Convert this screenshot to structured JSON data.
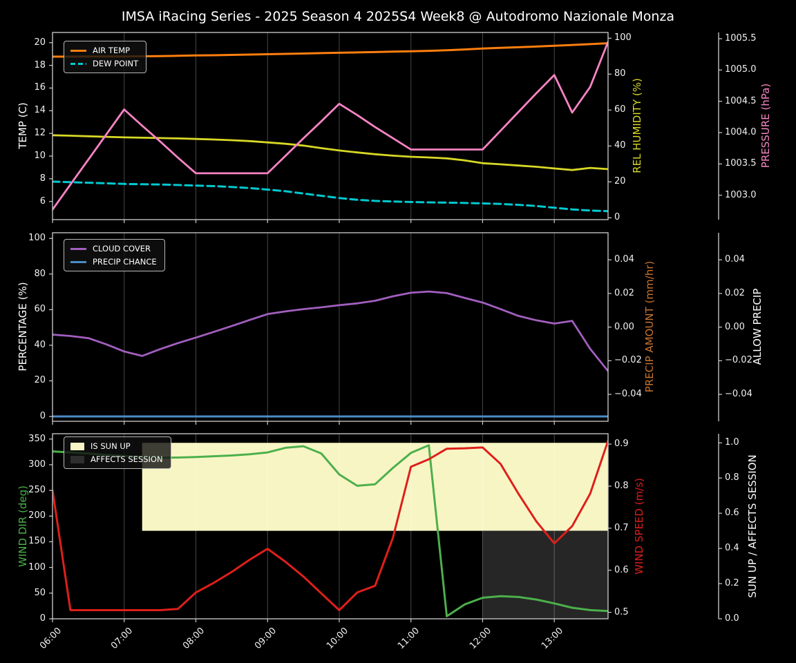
{
  "title": "IMSA iRacing Series - 2025 Season 4 2025S4 Week8 @ Autodromo Nazionale Monza",
  "colors": {
    "background": "#000000",
    "text": "#ffffff",
    "spine": "#d0d0d0",
    "grid": "rgba(255,255,255,0.28)"
  },
  "chart_data": [
    {
      "type": "line",
      "x_range": [
        6,
        13.75
      ],
      "x_hours": [
        6,
        6.25,
        6.5,
        6.75,
        7,
        7.25,
        7.5,
        7.75,
        8,
        8.25,
        8.5,
        8.75,
        9,
        9.25,
        9.5,
        9.75,
        10,
        10.25,
        10.5,
        10.75,
        11,
        11.25,
        11.5,
        11.75,
        12,
        12.25,
        12.5,
        12.75,
        13,
        13.25,
        13.5,
        13.75
      ],
      "x_ticks": {
        "hours": [
          6,
          7,
          8,
          9,
          10,
          11,
          12,
          13
        ],
        "labels": [
          "06:00",
          "07:00",
          "08:00",
          "09:00",
          "10:00",
          "11:00",
          "12:00",
          "13:00"
        ],
        "show_labels": false
      },
      "grid": true,
      "legend_loc": "upper left",
      "axes": {
        "left": {
          "label": "TEMP (C)",
          "color": "#ffffff",
          "range": [
            4.4,
            20.9
          ],
          "ticks": {
            "values": [
              6,
              8,
              10,
              12,
              14,
              16,
              18,
              20
            ],
            "labels": [
              "6",
              "8",
              "10",
              "12",
              "14",
              "16",
              "18",
              "20"
            ]
          }
        },
        "right1": {
          "label": "REL HUMIDITY (%)",
          "color": "#d8d826",
          "range": [
            -1,
            103.2
          ],
          "ticks": {
            "values": [
              0,
              20,
              40,
              60,
              80,
              100
            ],
            "labels": [
              "0",
              "20",
              "40",
              "60",
              "80",
              "100"
            ]
          }
        },
        "right2": {
          "label": "PRESSURE (hPa)",
          "color": "#f884c5",
          "range": [
            1002.61,
            1005.6
          ],
          "ticks": {
            "values": [
              1003.0,
              1003.5,
              1004.0,
              1004.5,
              1005.0,
              1005.5
            ],
            "labels": [
              "1003.0",
              "1003.5",
              "1004.0",
              "1004.5",
              "1005.0",
              "1005.5"
            ]
          }
        }
      },
      "series": [
        {
          "name": "AIR TEMP",
          "axis": "left",
          "color": "#ff7f0e",
          "width": 3,
          "values": [
            18.77,
            18.77,
            18.78,
            18.78,
            18.79,
            18.8,
            18.82,
            18.84,
            18.87,
            18.89,
            18.92,
            18.95,
            18.98,
            19.01,
            19.04,
            19.08,
            19.11,
            19.14,
            19.17,
            19.21,
            19.24,
            19.28,
            19.33,
            19.4,
            19.48,
            19.54,
            19.6,
            19.66,
            19.73,
            19.8,
            19.87,
            19.95
          ]
        },
        {
          "name": "DEW POINT",
          "axis": "left",
          "color": "#00c9d0",
          "width": 3,
          "dash": "10 6",
          "values": [
            7.75,
            7.7,
            7.65,
            7.6,
            7.55,
            7.52,
            7.5,
            7.45,
            7.4,
            7.35,
            7.28,
            7.18,
            7.05,
            6.9,
            6.7,
            6.5,
            6.3,
            6.15,
            6.05,
            6,
            5.95,
            5.92,
            5.9,
            5.87,
            5.83,
            5.78,
            5.7,
            5.6,
            5.45,
            5.3,
            5.2,
            5.15
          ]
        },
        {
          "name": "REL HUMIDITY",
          "axis": "right1",
          "color": "#d8d826",
          "width": 2.8,
          "values": [
            46,
            45.7,
            45.4,
            45.1,
            44.8,
            44.6,
            44.4,
            44.2,
            43.9,
            43.6,
            43.2,
            42.7,
            42,
            41.2,
            40.2,
            38.8,
            37.5,
            36.4,
            35.4,
            34.6,
            34,
            33.6,
            33.1,
            32,
            30.4,
            29.8,
            29.1,
            28.4,
            27.5,
            26.6,
            27.8,
            27.1
          ]
        },
        {
          "name": "PRESSURE",
          "axis": "right2",
          "color": "#f884c5",
          "width": 2.8,
          "values": [
            1002.77,
            1003.17,
            1003.57,
            1003.97,
            1004.37,
            1004.11,
            1003.86,
            1003.6,
            1003.35,
            1003.35,
            1003.35,
            1003.35,
            1003.35,
            1003.63,
            1003.91,
            1004.18,
            1004.46,
            1004.28,
            1004.09,
            1003.91,
            1003.73,
            1003.73,
            1003.73,
            1003.73,
            1003.73,
            1004.03,
            1004.33,
            1004.63,
            1004.92,
            1004.32,
            1004.73,
            1005.45
          ]
        }
      ],
      "legend": [
        {
          "label": "AIR TEMP",
          "color": "#ff7f0e",
          "style": "line"
        },
        {
          "label": "DEW POINT",
          "color": "#00c9d0",
          "style": "dashed"
        }
      ]
    },
    {
      "type": "line",
      "x_range": [
        6,
        13.75
      ],
      "x_hours": [
        6,
        6.25,
        6.5,
        6.75,
        7,
        7.25,
        7.5,
        7.75,
        8,
        8.25,
        8.5,
        8.75,
        9,
        9.25,
        9.5,
        9.75,
        10,
        10.25,
        10.5,
        10.75,
        11,
        11.25,
        11.5,
        11.75,
        12,
        12.25,
        12.5,
        12.75,
        13,
        13.25,
        13.5,
        13.75
      ],
      "x_ticks": {
        "hours": [
          6,
          7,
          8,
          9,
          10,
          11,
          12,
          13
        ],
        "labels": [
          "06:00",
          "07:00",
          "08:00",
          "09:00",
          "10:00",
          "11:00",
          "12:00",
          "13:00"
        ],
        "show_labels": false
      },
      "grid": true,
      "legend_loc": "upper left",
      "axes": {
        "left": {
          "label": "PERCENTAGE (%)",
          "color": "#ffffff",
          "range": [
            -2.7,
            103.2
          ],
          "ticks": {
            "values": [
              0,
              20,
              40,
              60,
              80,
              100
            ],
            "labels": [
              "0",
              "20",
              "40",
              "60",
              "80",
              "100"
            ]
          }
        },
        "right1": {
          "label": "PRECIP AMOUNT (mm/hr)",
          "color": "#c8742f",
          "range": [
            -0.056,
            0.0561
          ],
          "ticks": {
            "values": [
              0.04,
              0.02,
              0,
              -0.02,
              -0.04
            ],
            "labels": [
              "0.04",
              "0.02",
              "0.00",
              "−0.02",
              "−0.04"
            ]
          }
        },
        "right2": {
          "label": "ALLOW PRECIP",
          "color": "#ffffff",
          "range": [
            -0.056,
            0.0561
          ],
          "ticks": {
            "values": [
              0.04,
              0.02,
              0,
              -0.02,
              -0.04
            ],
            "labels": [
              "0.04",
              "0.02",
              "0.00",
              "−0.02",
              "−0.04"
            ]
          }
        }
      },
      "series": [
        {
          "name": "CLOUD COVER",
          "axis": "left",
          "color": "#a25fbf",
          "width": 2.8,
          "values": [
            46,
            45.2,
            44,
            40.5,
            36.5,
            34,
            37.8,
            41.2,
            44.3,
            47.5,
            50.8,
            54.2,
            57.5,
            59,
            60.3,
            61.3,
            62.5,
            63.5,
            65,
            67.5,
            69.5,
            70.2,
            69.3,
            66.6,
            64,
            60.3,
            56.5,
            54,
            52.2,
            53.7,
            38,
            25.5
          ]
        },
        {
          "name": "PRECIP CHANCE",
          "axis": "left",
          "color": "#4a8cc7",
          "width": 3,
          "values": [
            0,
            0,
            0,
            0,
            0,
            0,
            0,
            0,
            0,
            0,
            0,
            0,
            0,
            0,
            0,
            0,
            0,
            0,
            0,
            0,
            0,
            0,
            0,
            0,
            0,
            0,
            0,
            0,
            0,
            0,
            0,
            0
          ]
        }
      ],
      "legend": [
        {
          "label": "CLOUD COVER",
          "color": "#a25fbf",
          "style": "line"
        },
        {
          "label": "PRECIP CHANCE",
          "color": "#4a8cc7",
          "style": "line"
        }
      ]
    },
    {
      "type": "line",
      "x_range": [
        6,
        13.75
      ],
      "x_hours": [
        6,
        6.25,
        6.5,
        6.75,
        7,
        7.25,
        7.5,
        7.75,
        8,
        8.25,
        8.5,
        8.75,
        9,
        9.25,
        9.5,
        9.75,
        10,
        10.25,
        10.5,
        10.75,
        11,
        11.25,
        11.5,
        11.75,
        12,
        12.25,
        12.5,
        12.75,
        13,
        13.25,
        13.5,
        13.75
      ],
      "x_ticks": {
        "hours": [
          6,
          7,
          8,
          9,
          10,
          11,
          12,
          13
        ],
        "labels": [
          "06:00",
          "07:00",
          "08:00",
          "09:00",
          "10:00",
          "11:00",
          "12:00",
          "13:00"
        ],
        "show_labels": true
      },
      "grid": true,
      "legend_loc": "upper left",
      "axes": {
        "left": {
          "label": "WIND DIR (deg)",
          "color": "#4cb04c",
          "range": [
            0,
            360.4
          ],
          "ticks": {
            "values": [
              0,
              50,
              100,
              150,
              200,
              250,
              300,
              350
            ],
            "labels": [
              "0",
              "50",
              "100",
              "150",
              "200",
              "250",
              "300",
              "350"
            ]
          }
        },
        "right1": {
          "label": "WIND SPEED (m/s)",
          "color": "#de1f1a",
          "range": [
            0.4845,
            0.9247
          ],
          "ticks": {
            "values": [
              0.5,
              0.6,
              0.7,
              0.8,
              0.9
            ],
            "labels": [
              "0.5",
              "0.6",
              "0.7",
              "0.8",
              "0.9"
            ]
          }
        },
        "right2": {
          "label": "SUN UP / AFFECTS SESSION",
          "color": "#ffffff",
          "range": [
            0,
            1.052
          ],
          "ticks": {
            "values": [
              0,
              0.2,
              0.4,
              0.6,
              0.8,
              1.0
            ],
            "labels": [
              "0.0",
              "0.2",
              "0.4",
              "0.6",
              "0.8",
              "1.0"
            ]
          }
        }
      },
      "fills": [
        {
          "name": "IS SUN UP",
          "color": "#f8f5c5",
          "axis": "right2",
          "x_start": 7.25,
          "x_end": 13.75,
          "y_start": 0.5,
          "y_end": 1.0
        },
        {
          "name": "AFFECTS SESSION",
          "color": "#262626",
          "axis": "right2",
          "x_start": 12.0,
          "x_end": 13.75,
          "y_start": 0.0,
          "y_end": 0.5
        }
      ],
      "series": [
        {
          "name": "WIND DIR",
          "axis": "left",
          "color": "#4cb04c",
          "width": 3,
          "values": [
            326,
            324,
            322,
            319,
            317,
            315,
            313.5,
            314,
            315,
            316.5,
            318,
            320.5,
            324,
            333,
            336,
            322,
            281,
            259,
            262,
            294,
            323,
            338,
            5,
            28,
            41,
            44,
            42.5,
            37.5,
            30,
            21.5,
            17,
            15
          ]
        },
        {
          "name": "WIND SPEED",
          "axis": "right1",
          "color": "#de1f1a",
          "width": 3,
          "values": [
            0.79,
            0.505,
            0.505,
            0.505,
            0.505,
            0.505,
            0.505,
            0.508,
            0.547,
            0.57,
            0.596,
            0.625,
            0.651,
            0.62,
            0.585,
            0.545,
            0.505,
            0.547,
            0.563,
            0.678,
            0.846,
            0.864,
            0.889,
            0.89,
            0.892,
            0.853,
            0.782,
            0.716,
            0.664,
            0.705,
            0.782,
            0.908
          ]
        }
      ],
      "legend": [
        {
          "label": "IS SUN UP",
          "color": "#f8f5c5",
          "style": "patch"
        },
        {
          "label": "AFFECTS SESSION",
          "color": "#2e2e2e",
          "style": "patch"
        }
      ]
    }
  ]
}
